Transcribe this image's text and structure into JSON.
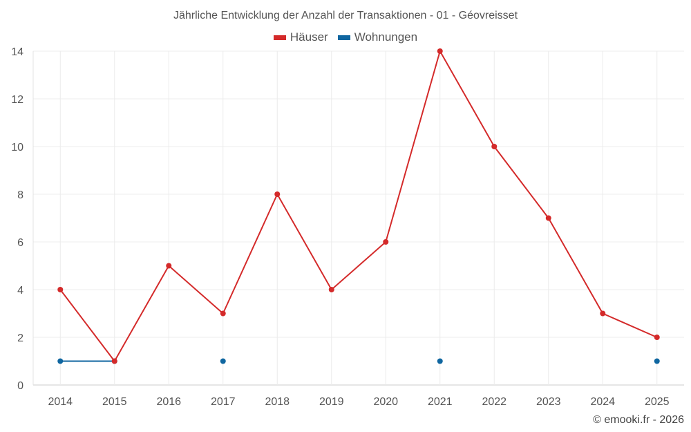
{
  "chart_data": {
    "type": "line",
    "title": "Jährliche Entwicklung der Anzahl der Transaktionen - 01 - Géovreisset",
    "xlabel": "",
    "ylabel": "",
    "x": [
      "2014",
      "2015",
      "2016",
      "2017",
      "2018",
      "2019",
      "2020",
      "2021",
      "2022",
      "2023",
      "2024",
      "2025"
    ],
    "ylim": [
      0,
      14
    ],
    "yticks": [
      "0",
      "2",
      "4",
      "6",
      "8",
      "10",
      "12",
      "14"
    ],
    "grid": true,
    "legend_position": "top-center",
    "series": [
      {
        "name": "Häuser",
        "color": "#d42a2a",
        "values": [
          4,
          1,
          5,
          3,
          8,
          4,
          6,
          14,
          10,
          7,
          3,
          2
        ]
      },
      {
        "name": "Wohnungen",
        "color": "#0f66a0",
        "values": [
          1,
          1,
          null,
          1,
          null,
          null,
          null,
          1,
          null,
          null,
          null,
          1
        ]
      }
    ]
  },
  "credit": "© emooki.fr - 2026"
}
